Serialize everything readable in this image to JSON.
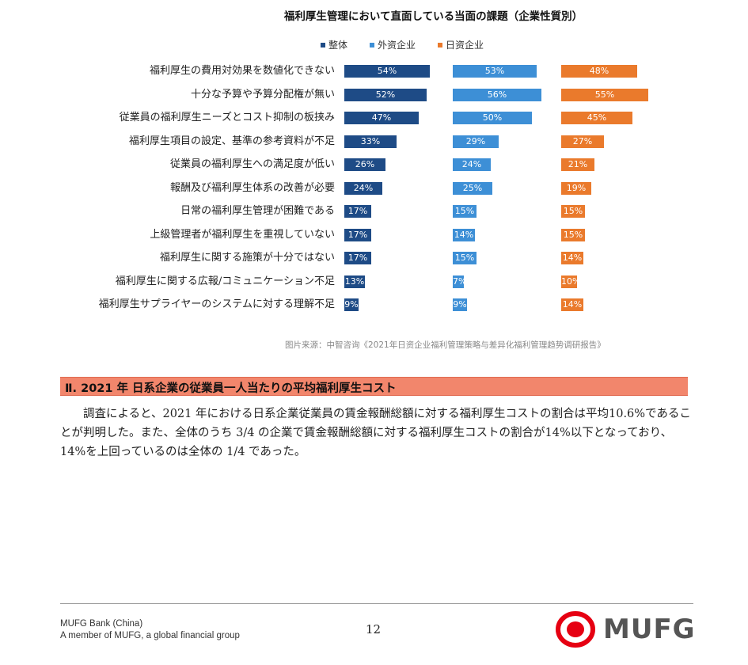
{
  "chart_data": {
    "type": "bar",
    "title": "福利厚生管理において直面している当面の課題（企業性質別）",
    "series": [
      {
        "name": "整体",
        "color": "#1e4b86",
        "values": [
          54,
          52,
          47,
          33,
          26,
          24,
          17,
          17,
          17,
          13,
          9
        ]
      },
      {
        "name": "外资企业",
        "color": "#3d8fd6",
        "values": [
          53,
          56,
          50,
          29,
          24,
          25,
          15,
          14,
          15,
          7,
          9
        ]
      },
      {
        "name": "日资企业",
        "color": "#ea7a2c",
        "values": [
          48,
          55,
          45,
          27,
          21,
          19,
          15,
          15,
          14,
          10,
          14
        ]
      }
    ],
    "categories": [
      "福利厚生の費用対効果を数値化できない",
      "十分な予算や予算分配権が無い",
      "従業員の福利厚生ニーズとコスト抑制の板挟み",
      "福利厚生項目の設定、基準の参考資料が不足",
      "従業員の福利厚生への満足度が低い",
      "報酬及び福利厚生体系の改善が必要",
      "日常の福利厚生管理が困難である",
      "上級管理者が福利厚生を重視していない",
      "福利厚生に関する施策が十分ではない",
      "福利厚生に関する広報/コミュニケーション不足",
      "福利厚生サプライヤーのシステムに対する理解不足"
    ],
    "unit": "%",
    "source": "图片来源：中智咨询《2021年日资企业福利管理策略与差异化福利管理趋势调研报告》"
  },
  "section": {
    "title": "Ⅱ. 2021 年 日系企業の従業員一人当たりの平均福利厚生コスト",
    "color": "#f2866c"
  },
  "body": {
    "paragraph": "調査によると、2021 年における日系企業従業員の賃金報酬総額に対する福利厚生コストの割合は平均10.6%であることが判明した。また、全体のうち 3/4 の企業で賃金報酬総額に対する福利厚生コストの割合が14%以下となっており、14%を上回っているのは全体の 1/4 であった。"
  },
  "footer": {
    "company": "MUFG Bank (China)",
    "tagline": "A member of MUFG, a global financial group",
    "page_number": "12",
    "logo_text": "MUFG",
    "logo_color": "#e60012"
  }
}
